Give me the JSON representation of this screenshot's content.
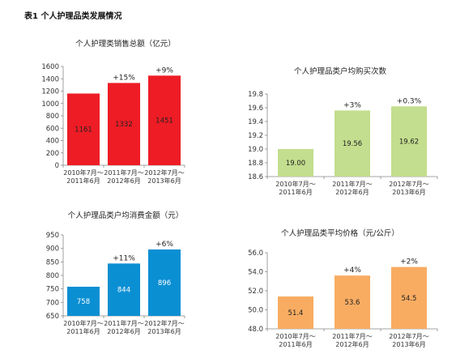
{
  "page_title": "表1  个人护理品类发展情况",
  "chart_data": [
    {
      "type": "bar",
      "title": "个人护理类销售总额（亿元）",
      "categories": [
        [
          "2010年7月～",
          "2011年6月"
        ],
        [
          "2011年7月～",
          "2012年6月"
        ],
        [
          "2012年7月～",
          "2013年6月"
        ]
      ],
      "values": [
        1161,
        1332,
        1451
      ],
      "value_labels": [
        "1161",
        "1332",
        "1451"
      ],
      "growth_labels": [
        "",
        "+15%",
        "+9%"
      ],
      "ylim": [
        0,
        1600
      ],
      "yticks": [
        "0",
        "200",
        "400",
        "600",
        "800",
        "1000",
        "1200",
        "1400",
        "1600"
      ],
      "ytick_values": [
        0,
        200,
        400,
        600,
        800,
        1000,
        1200,
        1400,
        1600
      ],
      "color": "#ee1c25",
      "label_color": "#222222",
      "grid": false
    },
    {
      "type": "bar",
      "title": "个人护理品类户均购买次数",
      "categories": [
        [
          "2010年7月～",
          "2011年6月"
        ],
        [
          "2011年7月～",
          "2012年6月"
        ],
        [
          "2012年7月～",
          "2013年6月"
        ]
      ],
      "values": [
        19.0,
        19.56,
        19.62
      ],
      "value_labels": [
        "19.00",
        "19.56",
        "19.62"
      ],
      "growth_labels": [
        "",
        "+3%",
        "+0.3%"
      ],
      "ylim": [
        18.6,
        19.8
      ],
      "yticks": [
        "18.6",
        "18.8",
        "19.0",
        "19.2",
        "19.4",
        "19.6",
        "19.8"
      ],
      "ytick_values": [
        18.6,
        18.8,
        19.0,
        19.2,
        19.4,
        19.6,
        19.8
      ],
      "color": "#c3de8e",
      "label_color": "#222222",
      "grid": false
    },
    {
      "type": "bar",
      "title": "个人护理品类户均消费金额（元）",
      "categories": [
        [
          "2010年7月～",
          "2011年6月"
        ],
        [
          "2011年7月～",
          "2012年6月"
        ],
        [
          "2012年7月～",
          "2013年6月"
        ]
      ],
      "values": [
        758,
        844,
        896
      ],
      "value_labels": [
        "758",
        "844",
        "896"
      ],
      "growth_labels": [
        "",
        "+11%",
        "+6%"
      ],
      "ylim": [
        650,
        950
      ],
      "yticks": [
        "650",
        "700",
        "750",
        "800",
        "850",
        "900",
        "950"
      ],
      "ytick_values": [
        650,
        700,
        750,
        800,
        850,
        900,
        950
      ],
      "color": "#0b8fd3",
      "label_color": "#ffffff",
      "grid": false
    },
    {
      "type": "bar",
      "title": "个人护理品类平均价格（元/公斤）",
      "categories": [
        [
          "2010年7月～",
          "2011年6月"
        ],
        [
          "2011年7月～",
          "2012年6月"
        ],
        [
          "2012年7月～",
          "2013年6月"
        ]
      ],
      "values": [
        51.4,
        53.6,
        54.5
      ],
      "value_labels": [
        "51.4",
        "53.6",
        "54.5"
      ],
      "growth_labels": [
        "",
        "+4%",
        "+2%"
      ],
      "ylim": [
        48.0,
        56.0
      ],
      "yticks": [
        "48.0",
        "50.0",
        "52.0",
        "54.0",
        "56.0"
      ],
      "ytick_values": [
        48,
        50,
        52,
        54,
        56
      ],
      "color": "#f8ac62",
      "label_color": "#222222",
      "grid": false
    }
  ]
}
